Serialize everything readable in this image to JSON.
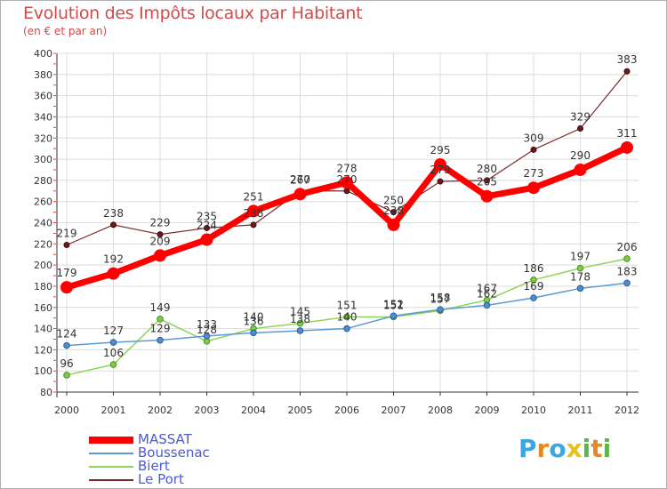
{
  "title": "Evolution des Impôts locaux par Habitant",
  "subtitle": "(en € et par an)",
  "logo": {
    "text": "Proxiti",
    "letters": [
      {
        "ch": "P",
        "color": "#3ba6e0"
      },
      {
        "ch": "r",
        "color": "#e58a1f"
      },
      {
        "ch": "o",
        "color": "#3ba6e0"
      },
      {
        "ch": "x",
        "color": "#e5c21f"
      },
      {
        "ch": "i",
        "color": "#59b847"
      },
      {
        "ch": "t",
        "color": "#e58a1f"
      },
      {
        "ch": "i",
        "color": "#59b847"
      }
    ]
  },
  "chart_data": {
    "type": "line",
    "title": "Evolution des Impôts locaux par Habitant",
    "ylabel": "(en € et par an)",
    "xlabel": "",
    "categories": [
      "2000",
      "2001",
      "2002",
      "2003",
      "2004",
      "2005",
      "2006",
      "2007",
      "2008",
      "2009",
      "2010",
      "2011",
      "2012"
    ],
    "ylim": [
      80,
      400
    ],
    "yticks": [
      80,
      100,
      120,
      140,
      160,
      180,
      200,
      220,
      240,
      260,
      280,
      300,
      320,
      340,
      360,
      380,
      400
    ],
    "grid": true,
    "legend_position": "bottom-left",
    "series": [
      {
        "name": "MASSAT",
        "color": "#ff0000",
        "values": [
          179,
          192,
          209,
          224,
          251,
          267,
          278,
          238,
          295,
          265,
          273,
          290,
          311
        ]
      },
      {
        "name": "Boussenac",
        "color": "#5b9bd5",
        "values": [
          124,
          127,
          129,
          133,
          136,
          138,
          140,
          152,
          158,
          162,
          169,
          178,
          183
        ]
      },
      {
        "name": "Biert",
        "color": "#8fd45a",
        "values": [
          96,
          106,
          149,
          128,
          140,
          145,
          151,
          151,
          157,
          167,
          186,
          197,
          206
        ]
      },
      {
        "name": "Le Port",
        "color": "#7a2a2a",
        "values": [
          219,
          238,
          229,
          235,
          238,
          270,
          270,
          250,
          279,
          280,
          309,
          329,
          383
        ]
      }
    ]
  }
}
